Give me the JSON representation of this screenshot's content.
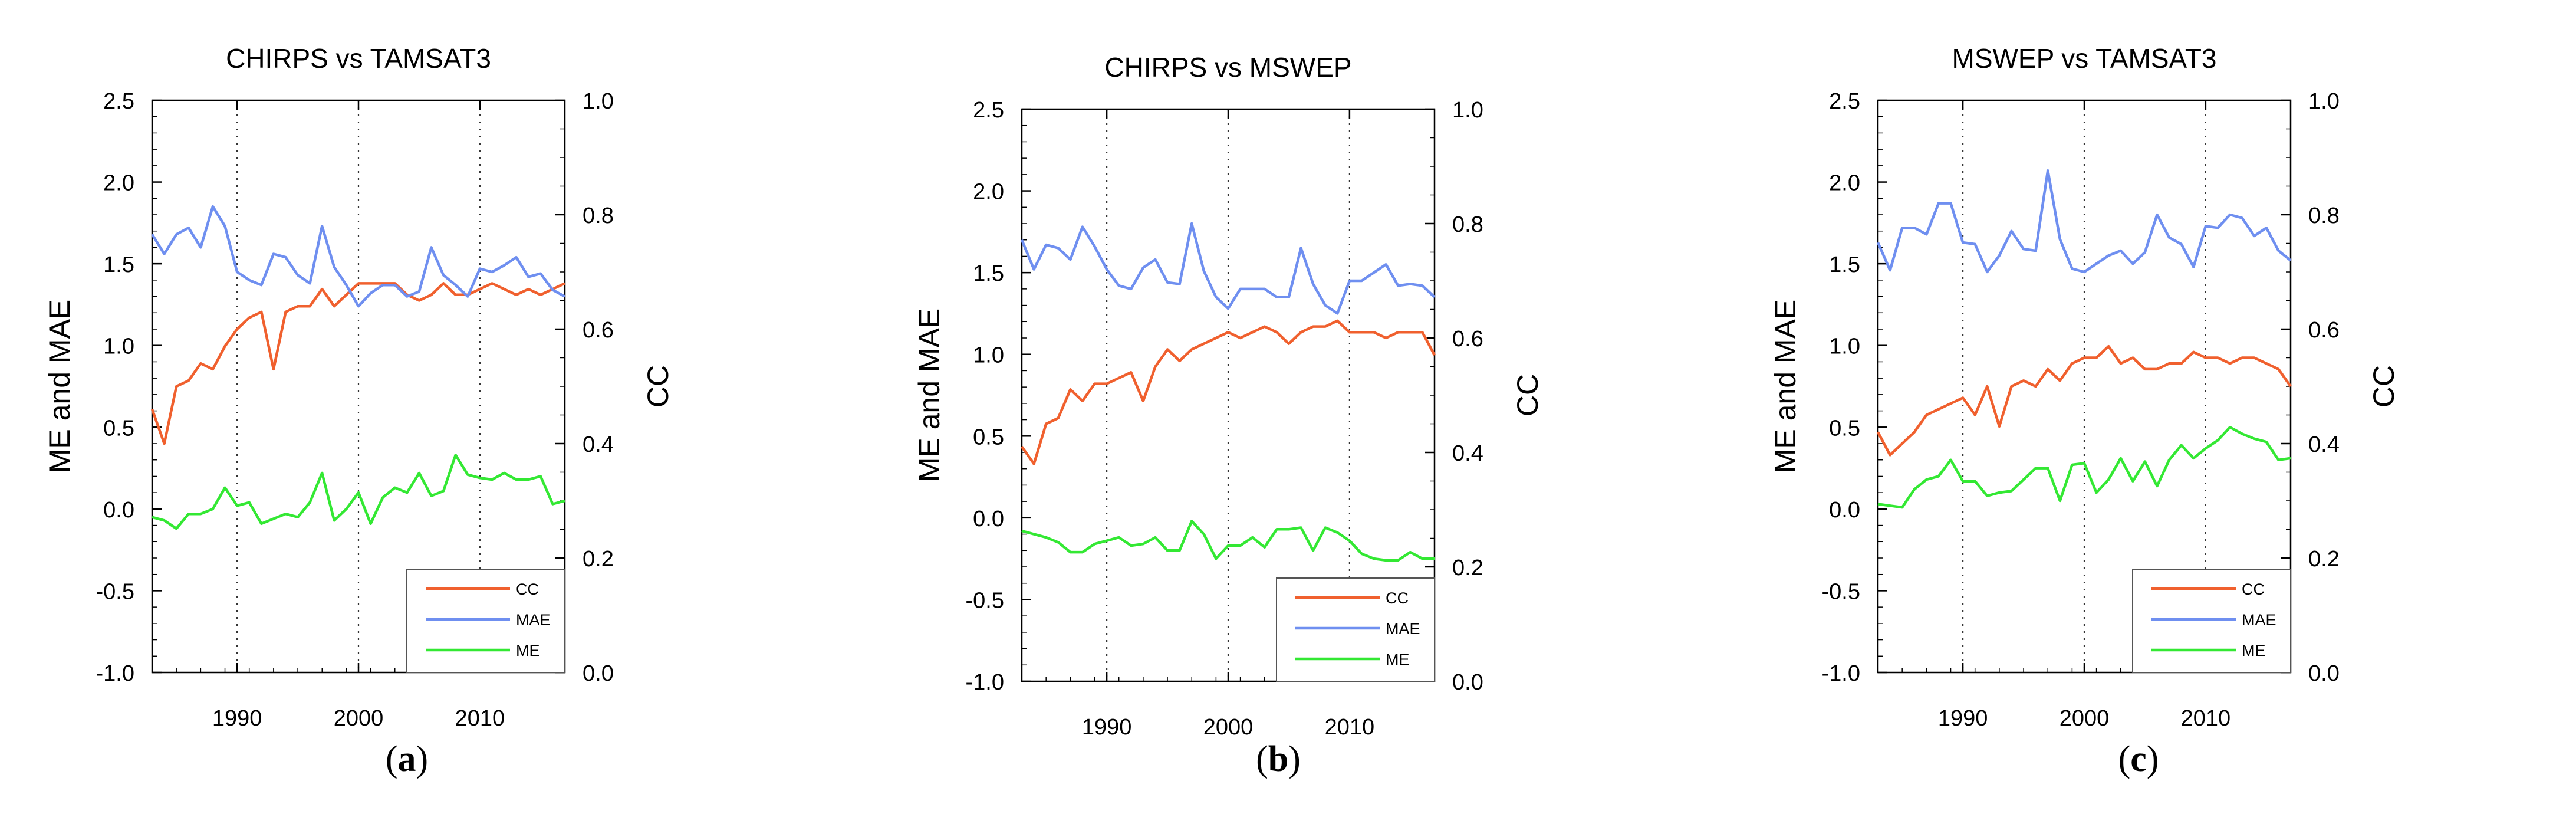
{
  "figure": {
    "panel_labels": [
      {
        "open": "(",
        "letter": "a",
        "close": ")"
      },
      {
        "open": "(",
        "letter": "b",
        "close": ")"
      },
      {
        "open": "(",
        "letter": "c",
        "close": ")"
      }
    ]
  },
  "chart_data": [
    {
      "type": "line",
      "title": "CHIRPS vs TAMSAT3",
      "ylabel": "ME and MAE",
      "y2label": "CC",
      "xlim": [
        1983,
        2017
      ],
      "ylim": [
        -1.0,
        2.5
      ],
      "y2lim": [
        0.0,
        1.0
      ],
      "xticks": [
        1990,
        2000,
        2010
      ],
      "yticks": [
        "2.5",
        "2.0",
        "1.5",
        "1.0",
        "0.5",
        "0.0",
        "-0.5",
        "-1.0"
      ],
      "y2ticks": [
        "1.0",
        "0.8",
        "0.6",
        "0.4",
        "0.2",
        "0.0"
      ],
      "grid": "dotted, vertical at x ticks",
      "legend_position": "bottom-right",
      "x": [
        1983,
        1984,
        1985,
        1986,
        1987,
        1988,
        1989,
        1990,
        1991,
        1992,
        1993,
        1994,
        1995,
        1996,
        1997,
        1998,
        1999,
        2000,
        2001,
        2002,
        2003,
        2004,
        2005,
        2006,
        2007,
        2008,
        2009,
        2010,
        2011,
        2012,
        2013,
        2014,
        2015,
        2016,
        2017
      ],
      "series": [
        {
          "name": "CC",
          "axis": "right",
          "color": "#f0602e",
          "values": [
            0.46,
            0.4,
            0.5,
            0.51,
            0.54,
            0.53,
            0.57,
            0.6,
            0.62,
            0.63,
            0.53,
            0.63,
            0.64,
            0.64,
            0.67,
            0.64,
            0.66,
            0.68,
            0.68,
            0.68,
            0.68,
            0.66,
            0.65,
            0.66,
            0.68,
            0.66,
            0.66,
            0.67,
            0.68,
            0.67,
            0.66,
            0.67,
            0.66,
            0.67,
            0.68
          ]
        },
        {
          "name": "MAE",
          "axis": "left",
          "color": "#6f8ff0",
          "values": [
            1.68,
            1.56,
            1.68,
            1.72,
            1.6,
            1.85,
            1.73,
            1.45,
            1.4,
            1.37,
            1.56,
            1.54,
            1.43,
            1.38,
            1.73,
            1.48,
            1.37,
            1.24,
            1.32,
            1.37,
            1.37,
            1.3,
            1.33,
            1.6,
            1.43,
            1.37,
            1.3,
            1.47,
            1.45,
            1.49,
            1.54,
            1.42,
            1.44,
            1.34,
            1.3
          ]
        },
        {
          "name": "ME",
          "axis": "left",
          "color": "#33e833",
          "values": [
            -0.05,
            -0.07,
            -0.12,
            -0.03,
            -0.03,
            0.0,
            0.13,
            0.02,
            0.04,
            -0.09,
            -0.06,
            -0.03,
            -0.05,
            0.04,
            0.22,
            -0.07,
            0.0,
            0.1,
            -0.09,
            0.07,
            0.13,
            0.1,
            0.22,
            0.08,
            0.11,
            0.33,
            0.21,
            0.19,
            0.18,
            0.22,
            0.18,
            0.18,
            0.2,
            0.03,
            0.05
          ]
        }
      ]
    },
    {
      "type": "line",
      "title": "CHIRPS vs MSWEP",
      "ylabel": "ME and MAE",
      "y2label": "CC",
      "xlim": [
        1983,
        2017
      ],
      "ylim": [
        -1.0,
        2.5
      ],
      "y2lim": [
        0.0,
        1.0
      ],
      "xticks": [
        1990,
        2000,
        2010
      ],
      "yticks": [
        "2.5",
        "2.0",
        "1.5",
        "1.0",
        "0.5",
        "0.0",
        "-0.5",
        "-1.0"
      ],
      "y2ticks": [
        "1.0",
        "0.8",
        "0.6",
        "0.4",
        "0.2",
        "0.0"
      ],
      "grid": "dotted, vertical at x ticks",
      "legend_position": "bottom-right",
      "x": [
        1983,
        1984,
        1985,
        1986,
        1987,
        1988,
        1989,
        1990,
        1991,
        1992,
        1993,
        1994,
        1995,
        1996,
        1997,
        1998,
        1999,
        2000,
        2001,
        2002,
        2003,
        2004,
        2005,
        2006,
        2007,
        2008,
        2009,
        2010,
        2011,
        2012,
        2013,
        2014,
        2015,
        2016,
        2017
      ],
      "series": [
        {
          "name": "CC",
          "axis": "right",
          "color": "#f0602e",
          "values": [
            0.41,
            0.38,
            0.45,
            0.46,
            0.51,
            0.49,
            0.52,
            0.52,
            0.53,
            0.54,
            0.49,
            0.55,
            0.58,
            0.56,
            0.58,
            0.59,
            0.6,
            0.61,
            0.6,
            0.61,
            0.62,
            0.61,
            0.59,
            0.61,
            0.62,
            0.62,
            0.63,
            0.61,
            0.61,
            0.61,
            0.6,
            0.61,
            0.61,
            0.61,
            0.57
          ]
        },
        {
          "name": "MAE",
          "axis": "left",
          "color": "#6f8ff0",
          "values": [
            1.7,
            1.52,
            1.67,
            1.65,
            1.58,
            1.78,
            1.66,
            1.52,
            1.42,
            1.4,
            1.53,
            1.58,
            1.44,
            1.43,
            1.8,
            1.51,
            1.35,
            1.28,
            1.4,
            1.4,
            1.4,
            1.35,
            1.35,
            1.65,
            1.43,
            1.3,
            1.25,
            1.45,
            1.45,
            1.5,
            1.55,
            1.42,
            1.43,
            1.42,
            1.35
          ]
        },
        {
          "name": "ME",
          "axis": "left",
          "color": "#33e833",
          "values": [
            -0.08,
            -0.1,
            -0.12,
            -0.15,
            -0.21,
            -0.21,
            -0.16,
            -0.14,
            -0.12,
            -0.17,
            -0.16,
            -0.12,
            -0.2,
            -0.2,
            -0.02,
            -0.1,
            -0.25,
            -0.17,
            -0.17,
            -0.12,
            -0.18,
            -0.07,
            -0.07,
            -0.06,
            -0.2,
            -0.06,
            -0.09,
            -0.14,
            -0.22,
            -0.25,
            -0.26,
            -0.26,
            -0.21,
            -0.25,
            -0.25
          ]
        }
      ]
    },
    {
      "type": "line",
      "title": "MSWEP vs TAMSAT3",
      "ylabel": "ME and MAE",
      "y2label": "CC",
      "xlim": [
        1983,
        2017
      ],
      "ylim": [
        -1.0,
        2.5
      ],
      "y2lim": [
        0.0,
        1.0
      ],
      "xticks": [
        1990,
        2000,
        2010
      ],
      "yticks": [
        "2.5",
        "2.0",
        "1.5",
        "1.0",
        "0.5",
        "0.0",
        "-0.5",
        "-1.0"
      ],
      "y2ticks": [
        "1.0",
        "0.8",
        "0.6",
        "0.4",
        "0.2",
        "0.0"
      ],
      "grid": "dotted, vertical at x ticks",
      "legend_position": "bottom-right",
      "x": [
        1983,
        1984,
        1985,
        1986,
        1987,
        1988,
        1989,
        1990,
        1991,
        1992,
        1993,
        1994,
        1995,
        1996,
        1997,
        1998,
        1999,
        2000,
        2001,
        2002,
        2003,
        2004,
        2005,
        2006,
        2007,
        2008,
        2009,
        2010,
        2011,
        2012,
        2013,
        2014,
        2015,
        2016,
        2017
      ],
      "series": [
        {
          "name": "CC",
          "axis": "right",
          "color": "#f0602e",
          "values": [
            0.42,
            0.38,
            0.4,
            0.42,
            0.45,
            0.46,
            0.47,
            0.48,
            0.45,
            0.5,
            0.43,
            0.5,
            0.51,
            0.5,
            0.53,
            0.51,
            0.54,
            0.55,
            0.55,
            0.57,
            0.54,
            0.55,
            0.53,
            0.53,
            0.54,
            0.54,
            0.56,
            0.55,
            0.55,
            0.54,
            0.55,
            0.55,
            0.54,
            0.53,
            0.5
          ]
        },
        {
          "name": "MAE",
          "axis": "left",
          "color": "#6f8ff0",
          "values": [
            1.63,
            1.46,
            1.72,
            1.72,
            1.68,
            1.87,
            1.87,
            1.63,
            1.62,
            1.45,
            1.55,
            1.7,
            1.59,
            1.58,
            2.07,
            1.65,
            1.47,
            1.45,
            1.5,
            1.55,
            1.58,
            1.5,
            1.57,
            1.8,
            1.66,
            1.62,
            1.48,
            1.73,
            1.72,
            1.8,
            1.78,
            1.67,
            1.72,
            1.58,
            1.52
          ]
        },
        {
          "name": "ME",
          "axis": "left",
          "color": "#33e833",
          "values": [
            0.03,
            0.02,
            0.01,
            0.12,
            0.18,
            0.2,
            0.3,
            0.17,
            0.17,
            0.08,
            0.1,
            0.11,
            0.18,
            0.25,
            0.25,
            0.05,
            0.27,
            0.28,
            0.1,
            0.18,
            0.31,
            0.17,
            0.29,
            0.14,
            0.3,
            0.39,
            0.31,
            0.37,
            0.42,
            0.5,
            0.46,
            0.43,
            0.41,
            0.3,
            0.31
          ]
        }
      ]
    }
  ]
}
